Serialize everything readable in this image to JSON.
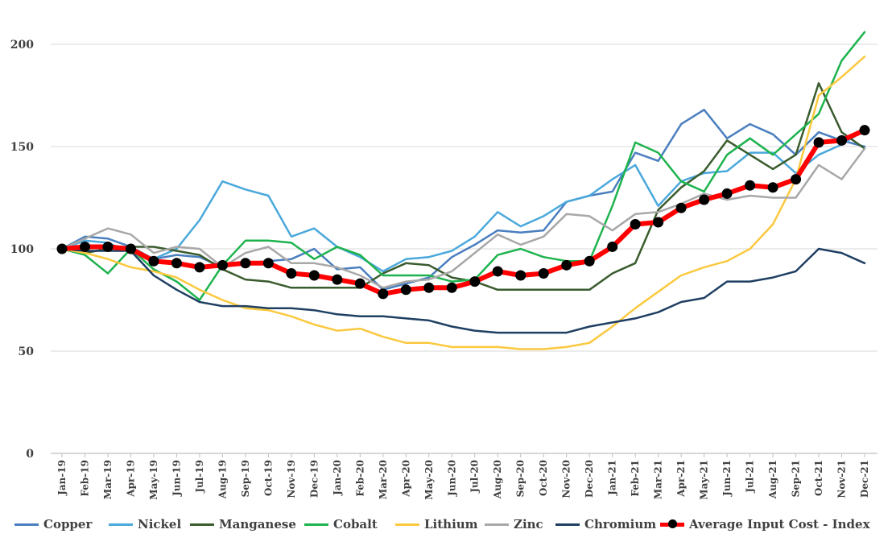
{
  "chart_data": {
    "type": "line",
    "title": "",
    "xlabel": "",
    "ylabel": "",
    "ylim": [
      0,
      200
    ],
    "yticks": [
      0,
      50,
      100,
      150,
      200
    ],
    "grid": "horizontal",
    "legend_position": "bottom",
    "categories": [
      "Jan-19",
      "Feb-19",
      "Mar-19",
      "Apr-19",
      "May-19",
      "Jun-19",
      "Jul-19",
      "Aug-19",
      "Sep-19",
      "Oct-19",
      "Nov-19",
      "Dec-19",
      "Jan-20",
      "Feb-20",
      "Mar-20",
      "Apr-20",
      "May-20",
      "Jun-20",
      "Jul-20",
      "Aug-20",
      "Sep-20",
      "Oct-20",
      "Nov-20",
      "Dec-20",
      "Jan-21",
      "Feb-21",
      "Mar-21",
      "Apr-21",
      "May-21",
      "Jun-21",
      "Jul-21",
      "Aug-21",
      "Sep-21",
      "Oct-21",
      "Nov-21",
      "Dec-21"
    ],
    "series": [
      {
        "name": "Copper",
        "color": "#4a7fbf",
        "width": 2.5,
        "markers": false,
        "values": [
          100,
          106,
          105,
          101,
          95,
          97,
          96,
          91,
          93,
          94,
          95,
          100,
          90,
          91,
          80,
          83,
          86,
          96,
          102,
          109,
          108,
          109,
          123,
          126,
          128,
          147,
          143,
          161,
          168,
          154,
          161,
          156,
          146,
          157,
          153,
          150
        ]
      },
      {
        "name": "Nickel",
        "color": "#4aa8dc",
        "width": 2.5,
        "markers": false,
        "values": [
          100,
          104,
          103,
          98,
          95,
          100,
          114,
          133,
          129,
          126,
          106,
          110,
          101,
          96,
          89,
          95,
          96,
          99,
          106,
          118,
          111,
          116,
          123,
          126,
          134,
          141,
          121,
          133,
          137,
          138,
          147,
          147,
          137,
          146,
          151,
          158
        ]
      },
      {
        "name": "Manganese",
        "color": "#3a5c2e",
        "width": 2.5,
        "markers": false,
        "values": [
          100,
          98,
          100,
          101,
          101,
          99,
          97,
          90,
          85,
          84,
          81,
          81,
          81,
          81,
          88,
          93,
          92,
          86,
          84,
          80,
          80,
          80,
          80,
          80,
          88,
          93,
          119,
          130,
          138,
          153,
          146,
          139,
          146,
          181,
          157,
          149
        ]
      },
      {
        "name": "Cobalt",
        "color": "#1eb34e",
        "width": 2.5,
        "markers": false,
        "values": [
          100,
          97,
          88,
          100,
          90,
          84,
          75,
          92,
          104,
          104,
          103,
          95,
          101,
          97,
          87,
          87,
          87,
          84,
          85,
          97,
          100,
          96,
          94,
          94,
          121,
          152,
          147,
          133,
          128,
          146,
          154,
          146,
          156,
          166,
          192,
          206
        ]
      },
      {
        "name": "Lithium",
        "color": "#fbc93f",
        "width": 2.5,
        "markers": false,
        "values": [
          100,
          98,
          95,
          91,
          89,
          86,
          80,
          75,
          71,
          70,
          67,
          63,
          60,
          61,
          57,
          54,
          54,
          52,
          52,
          52,
          51,
          51,
          52,
          54,
          62,
          71,
          79,
          87,
          91,
          94,
          100,
          112,
          134,
          175,
          184,
          194
        ]
      },
      {
        "name": "Zinc",
        "color": "#a8a8a8",
        "width": 2.5,
        "markers": false,
        "values": [
          100,
          105,
          110,
          107,
          98,
          101,
          100,
          91,
          98,
          101,
          93,
          93,
          91,
          87,
          81,
          84,
          85,
          89,
          98,
          107,
          102,
          106,
          117,
          116,
          109,
          117,
          118,
          122,
          127,
          124,
          126,
          125,
          125,
          141,
          134,
          149
        ]
      },
      {
        "name": "Chromium",
        "color": "#1f3f62",
        "width": 2.5,
        "markers": false,
        "values": [
          100,
          99,
          99,
          99,
          87,
          80,
          74,
          72,
          72,
          71,
          71,
          70,
          68,
          67,
          67,
          66,
          65,
          62,
          60,
          59,
          59,
          59,
          59,
          62,
          64,
          66,
          69,
          74,
          76,
          84,
          84,
          86,
          89,
          100,
          98,
          93
        ]
      },
      {
        "name": "Average Input Cost - Index",
        "color": "#ff0000",
        "width": 6,
        "markers": true,
        "values": [
          100,
          101,
          101,
          100,
          94,
          93,
          91,
          92,
          93,
          93,
          88,
          87,
          85,
          83,
          78,
          80,
          81,
          81,
          84,
          89,
          87,
          88,
          92,
          94,
          101,
          112,
          113,
          120,
          124,
          127,
          131,
          130,
          134,
          152,
          153,
          158
        ]
      }
    ]
  }
}
